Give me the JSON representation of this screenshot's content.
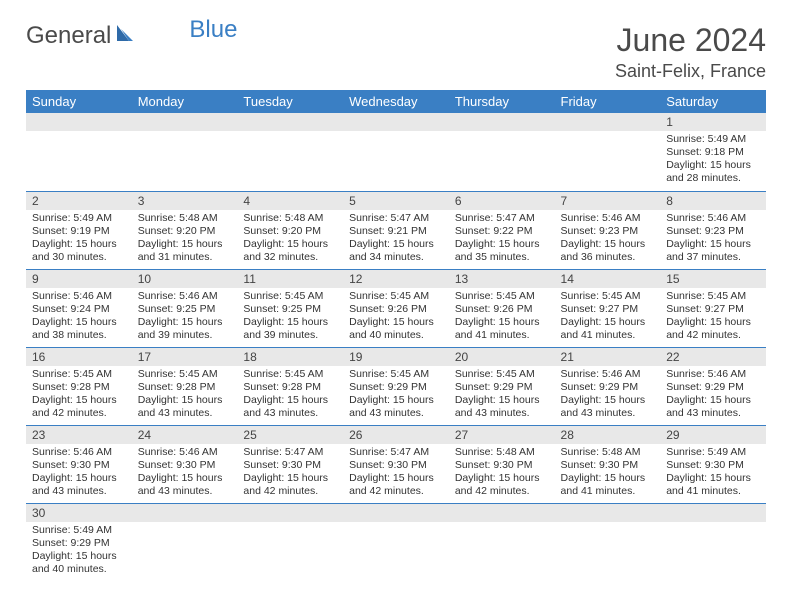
{
  "logo": {
    "text1": "General",
    "text2": "Blue"
  },
  "title": "June 2024",
  "location": "Saint-Felix, France",
  "colors": {
    "header_bg": "#3a7fc4",
    "header_text": "#ffffff",
    "daynum_bg": "#e8e8e8",
    "border": "#3a7fc4",
    "text": "#333333",
    "logo_gray": "#4a4a4a",
    "logo_blue": "#3a7fc4"
  },
  "weekdays": [
    "Sunday",
    "Monday",
    "Tuesday",
    "Wednesday",
    "Thursday",
    "Friday",
    "Saturday"
  ],
  "grid": [
    [
      null,
      null,
      null,
      null,
      null,
      null,
      {
        "n": "1",
        "sunrise": "5:49 AM",
        "sunset": "9:18 PM",
        "daylight": "15 hours and 28 minutes."
      }
    ],
    [
      {
        "n": "2",
        "sunrise": "5:49 AM",
        "sunset": "9:19 PM",
        "daylight": "15 hours and 30 minutes."
      },
      {
        "n": "3",
        "sunrise": "5:48 AM",
        "sunset": "9:20 PM",
        "daylight": "15 hours and 31 minutes."
      },
      {
        "n": "4",
        "sunrise": "5:48 AM",
        "sunset": "9:20 PM",
        "daylight": "15 hours and 32 minutes."
      },
      {
        "n": "5",
        "sunrise": "5:47 AM",
        "sunset": "9:21 PM",
        "daylight": "15 hours and 34 minutes."
      },
      {
        "n": "6",
        "sunrise": "5:47 AM",
        "sunset": "9:22 PM",
        "daylight": "15 hours and 35 minutes."
      },
      {
        "n": "7",
        "sunrise": "5:46 AM",
        "sunset": "9:23 PM",
        "daylight": "15 hours and 36 minutes."
      },
      {
        "n": "8",
        "sunrise": "5:46 AM",
        "sunset": "9:23 PM",
        "daylight": "15 hours and 37 minutes."
      }
    ],
    [
      {
        "n": "9",
        "sunrise": "5:46 AM",
        "sunset": "9:24 PM",
        "daylight": "15 hours and 38 minutes."
      },
      {
        "n": "10",
        "sunrise": "5:46 AM",
        "sunset": "9:25 PM",
        "daylight": "15 hours and 39 minutes."
      },
      {
        "n": "11",
        "sunrise": "5:45 AM",
        "sunset": "9:25 PM",
        "daylight": "15 hours and 39 minutes."
      },
      {
        "n": "12",
        "sunrise": "5:45 AM",
        "sunset": "9:26 PM",
        "daylight": "15 hours and 40 minutes."
      },
      {
        "n": "13",
        "sunrise": "5:45 AM",
        "sunset": "9:26 PM",
        "daylight": "15 hours and 41 minutes."
      },
      {
        "n": "14",
        "sunrise": "5:45 AM",
        "sunset": "9:27 PM",
        "daylight": "15 hours and 41 minutes."
      },
      {
        "n": "15",
        "sunrise": "5:45 AM",
        "sunset": "9:27 PM",
        "daylight": "15 hours and 42 minutes."
      }
    ],
    [
      {
        "n": "16",
        "sunrise": "5:45 AM",
        "sunset": "9:28 PM",
        "daylight": "15 hours and 42 minutes."
      },
      {
        "n": "17",
        "sunrise": "5:45 AM",
        "sunset": "9:28 PM",
        "daylight": "15 hours and 43 minutes."
      },
      {
        "n": "18",
        "sunrise": "5:45 AM",
        "sunset": "9:28 PM",
        "daylight": "15 hours and 43 minutes."
      },
      {
        "n": "19",
        "sunrise": "5:45 AM",
        "sunset": "9:29 PM",
        "daylight": "15 hours and 43 minutes."
      },
      {
        "n": "20",
        "sunrise": "5:45 AM",
        "sunset": "9:29 PM",
        "daylight": "15 hours and 43 minutes."
      },
      {
        "n": "21",
        "sunrise": "5:46 AM",
        "sunset": "9:29 PM",
        "daylight": "15 hours and 43 minutes."
      },
      {
        "n": "22",
        "sunrise": "5:46 AM",
        "sunset": "9:29 PM",
        "daylight": "15 hours and 43 minutes."
      }
    ],
    [
      {
        "n": "23",
        "sunrise": "5:46 AM",
        "sunset": "9:30 PM",
        "daylight": "15 hours and 43 minutes."
      },
      {
        "n": "24",
        "sunrise": "5:46 AM",
        "sunset": "9:30 PM",
        "daylight": "15 hours and 43 minutes."
      },
      {
        "n": "25",
        "sunrise": "5:47 AM",
        "sunset": "9:30 PM",
        "daylight": "15 hours and 42 minutes."
      },
      {
        "n": "26",
        "sunrise": "5:47 AM",
        "sunset": "9:30 PM",
        "daylight": "15 hours and 42 minutes."
      },
      {
        "n": "27",
        "sunrise": "5:48 AM",
        "sunset": "9:30 PM",
        "daylight": "15 hours and 42 minutes."
      },
      {
        "n": "28",
        "sunrise": "5:48 AM",
        "sunset": "9:30 PM",
        "daylight": "15 hours and 41 minutes."
      },
      {
        "n": "29",
        "sunrise": "5:49 AM",
        "sunset": "9:30 PM",
        "daylight": "15 hours and 41 minutes."
      }
    ],
    [
      {
        "n": "30",
        "sunrise": "5:49 AM",
        "sunset": "9:29 PM",
        "daylight": "15 hours and 40 minutes."
      },
      null,
      null,
      null,
      null,
      null,
      null
    ]
  ],
  "labels": {
    "sunrise": "Sunrise: ",
    "sunset": "Sunset: ",
    "daylight": "Daylight: "
  }
}
